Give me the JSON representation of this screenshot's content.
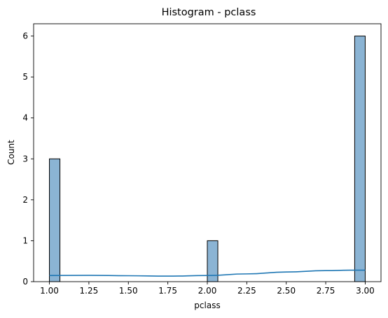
{
  "chart_data": {
    "type": "bar",
    "title": "Histogram - pclass",
    "xlabel": "pclass",
    "ylabel": "Count",
    "xlim": [
      0.9,
      3.1
    ],
    "ylim": [
      0,
      6.3
    ],
    "xticks": [
      "1.00",
      "1.25",
      "1.50",
      "1.75",
      "2.00",
      "2.25",
      "2.50",
      "2.75",
      "3.00"
    ],
    "yticks": [
      "0",
      "1",
      "2",
      "3",
      "4",
      "5",
      "6"
    ],
    "bins": [
      {
        "x0": 1.0,
        "x1": 1.0667,
        "count": 3
      },
      {
        "x0": 2.0,
        "x1": 2.0667,
        "count": 1
      },
      {
        "x0": 2.9333,
        "x1": 3.0,
        "count": 6
      }
    ],
    "kde": {
      "x": [
        1.0,
        1.25,
        1.5,
        1.75,
        2.0,
        2.25,
        2.5,
        2.75,
        2.9,
        3.0
      ],
      "y": [
        0.15,
        0.155,
        0.145,
        0.135,
        0.15,
        0.19,
        0.235,
        0.27,
        0.28,
        0.28
      ]
    },
    "colors": {
      "bar_fill": "#8bb4d4",
      "bar_edge": "#000000",
      "kde_line": "#1f77b4"
    },
    "grid": false
  }
}
